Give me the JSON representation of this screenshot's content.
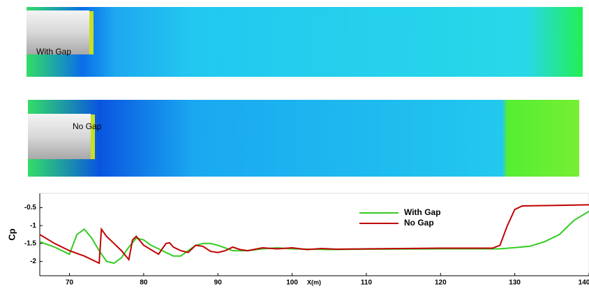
{
  "panels": [
    {
      "label": "With Gap"
    },
    {
      "label": "No Gap"
    }
  ],
  "chart_data": {
    "type": "line",
    "xlabel": "X(m)",
    "ylabel": "Cp",
    "xlim": [
      66,
      140
    ],
    "ylim": [
      -2.4,
      -0.1
    ],
    "xticks": [
      70,
      80,
      90,
      100,
      110,
      120,
      130,
      140
    ],
    "yticks": [
      -0.5,
      -1,
      -1.5,
      -2
    ],
    "legend": "upper right",
    "series": [
      {
        "name": "With Gap",
        "color": "#33cc22",
        "x": [
          66,
          68,
          70,
          71,
          72,
          73,
          74,
          75,
          76,
          77,
          78,
          79,
          80,
          81,
          82,
          83,
          84,
          85,
          86,
          87,
          88,
          89,
          90,
          92,
          94,
          96,
          98,
          100,
          105,
          110,
          120,
          128,
          132,
          134,
          136,
          138,
          140
        ],
        "values": [
          -1.45,
          -1.6,
          -1.8,
          -1.25,
          -1.1,
          -1.35,
          -1.7,
          -2.0,
          -2.05,
          -1.9,
          -1.6,
          -1.35,
          -1.4,
          -1.55,
          -1.65,
          -1.75,
          -1.85,
          -1.85,
          -1.7,
          -1.55,
          -1.5,
          -1.5,
          -1.55,
          -1.7,
          -1.7,
          -1.65,
          -1.62,
          -1.65,
          -1.67,
          -1.66,
          -1.65,
          -1.65,
          -1.58,
          -1.45,
          -1.25,
          -0.85,
          -0.6
        ]
      },
      {
        "name": "No Gap",
        "color": "#c00000",
        "x": [
          66,
          68,
          70,
          72,
          74,
          74.3,
          75,
          76,
          77,
          78,
          78.5,
          79,
          80,
          82,
          83,
          83.5,
          84,
          85,
          86,
          87,
          88,
          89,
          90,
          91,
          92,
          93,
          94,
          96,
          98,
          100,
          102,
          104,
          106,
          110,
          120,
          127,
          128,
          129,
          130,
          131,
          135,
          140
        ],
        "values": [
          -1.25,
          -1.5,
          -1.7,
          -1.85,
          -2.05,
          -1.1,
          -1.3,
          -1.5,
          -1.7,
          -1.95,
          -1.4,
          -1.3,
          -1.55,
          -1.8,
          -1.5,
          -1.48,
          -1.6,
          -1.7,
          -1.75,
          -1.55,
          -1.58,
          -1.72,
          -1.75,
          -1.7,
          -1.6,
          -1.67,
          -1.7,
          -1.62,
          -1.65,
          -1.62,
          -1.67,
          -1.64,
          -1.66,
          -1.65,
          -1.63,
          -1.63,
          -1.55,
          -1.0,
          -0.55,
          -0.45,
          -0.44,
          -0.42
        ]
      }
    ]
  }
}
